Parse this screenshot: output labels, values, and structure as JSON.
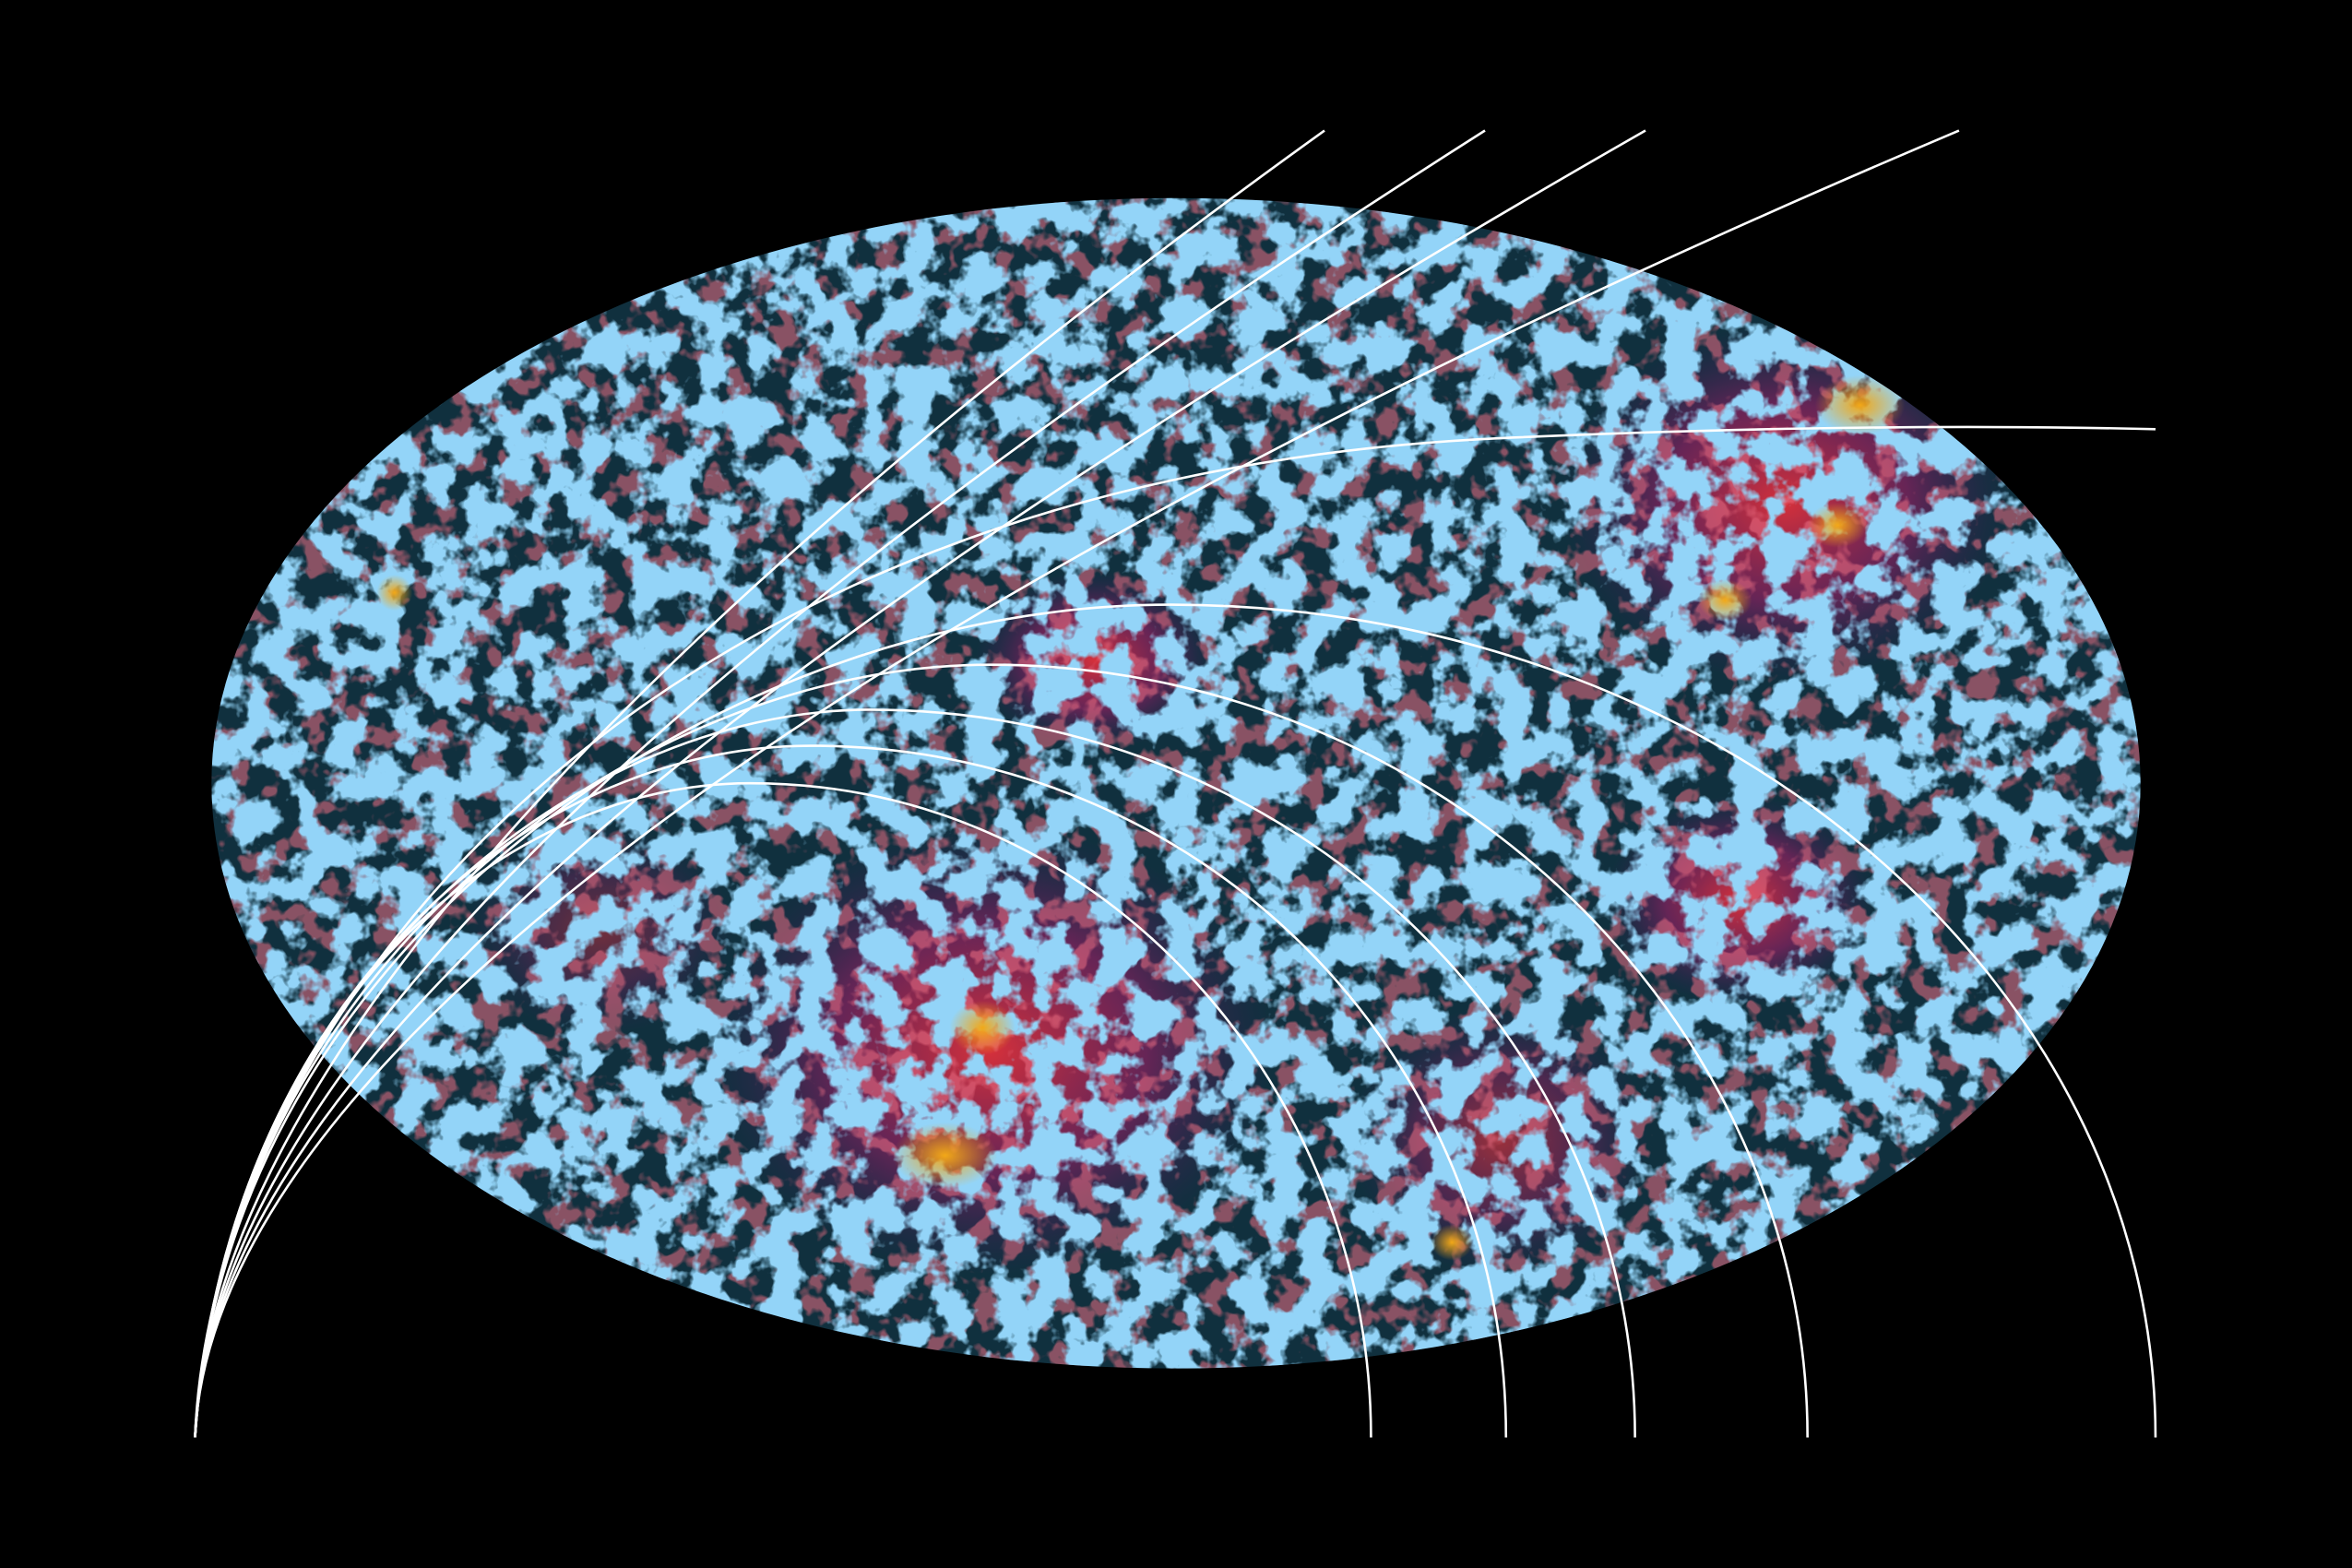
{
  "colors": {
    "background": "#000000",
    "map_base": "#10303e",
    "cold_regions": "#4aa8f0",
    "warm_regions": "#d8283a",
    "hot_spots": "#f2a818",
    "purple_haze": "#5a2a7a",
    "lines": "#ffffff"
  }
}
